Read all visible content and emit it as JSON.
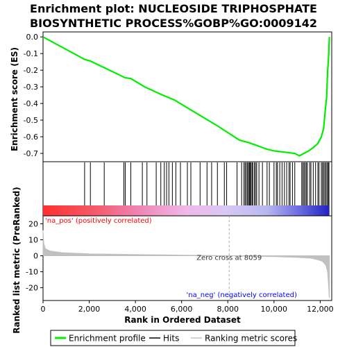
{
  "chart_data": {
    "type": "line",
    "title_line1": "Enrichment plot: NUCLEOSIDE TRIPHOSPHATE",
    "title_line2": "BIOSYNTHETIC PROCESS%GOBP%GO:0009142",
    "xlabel": "Rank in Ordered Dataset",
    "es_ylabel": "Enrichment score (ES)",
    "metric_ylabel_line1": "Ranked list metric (PreRanked)",
    "xlim": [
      0,
      12500
    ],
    "x_ticks": [
      0,
      2000,
      4000,
      6000,
      8000,
      10000,
      12000
    ],
    "x_tick_labels": [
      "0",
      "2,000",
      "4,000",
      "6,000",
      "8,000",
      "10,000",
      "12,000"
    ],
    "es_ylim": [
      -0.75,
      0.03
    ],
    "es_ticks": [
      0.0,
      -0.1,
      -0.2,
      -0.3,
      -0.4,
      -0.5,
      -0.6,
      -0.7
    ],
    "es_tick_labels": [
      "0.0",
      "-0.1",
      "-0.2",
      "-0.3",
      "-0.4",
      "-0.5",
      "-0.6",
      "-0.7"
    ],
    "metric_ylim": [
      -28,
      25
    ],
    "metric_ticks": [
      20,
      10,
      0,
      -10,
      -20
    ],
    "metric_tick_labels": [
      "20",
      "10",
      "0",
      "-10",
      "-20"
    ],
    "grid": false,
    "enrichment_profile": {
      "name": "Enrichment profile",
      "color": "#00ee00",
      "x": [
        0,
        1800,
        2050,
        2650,
        3550,
        3800,
        4400,
        5100,
        5700,
        6300,
        6900,
        7500,
        8000,
        8500,
        8900,
        9300,
        9700,
        10000,
        10300,
        10600,
        10900,
        11100,
        11300,
        11500,
        11700,
        11900,
        12050,
        12150,
        12220,
        12280,
        12320,
        12360,
        12380,
        12400
      ],
      "y": [
        0.0,
        -0.135,
        -0.145,
        -0.185,
        -0.245,
        -0.25,
        -0.3,
        -0.345,
        -0.38,
        -0.43,
        -0.48,
        -0.53,
        -0.575,
        -0.62,
        -0.635,
        -0.655,
        -0.675,
        -0.685,
        -0.69,
        -0.695,
        -0.7,
        -0.715,
        -0.7,
        -0.685,
        -0.665,
        -0.64,
        -0.6,
        -0.55,
        -0.44,
        -0.36,
        -0.21,
        -0.13,
        -0.06,
        0.0
      ]
    },
    "hits": {
      "name": "Hits",
      "color": "#000000",
      "positions": [
        1800,
        2050,
        2650,
        3500,
        3560,
        3800,
        4300,
        4500,
        4900,
        5100,
        5250,
        5350,
        5450,
        5600,
        5750,
        5950,
        6250,
        6400,
        6800,
        7100,
        7300,
        7550,
        7850,
        7950,
        8400,
        8600,
        8700,
        8750,
        8800,
        8850,
        8900,
        8930,
        8960,
        9000,
        9050,
        9080,
        9150,
        9200,
        9250,
        9350,
        9500,
        9700,
        9800,
        10000,
        10100,
        10150,
        10250,
        10350,
        10450,
        10550,
        10650,
        10700,
        10800,
        10900,
        11200,
        11250,
        11300,
        11350,
        11400,
        11450,
        11550,
        11600,
        11700,
        11800,
        11900,
        11950,
        12050,
        12100,
        12150,
        12200,
        12250,
        12300,
        12350,
        12380
      ]
    },
    "ranking_metric": {
      "name": "Ranking metric scores",
      "color": "#c0c0c0",
      "x": [
        0,
        30,
        100,
        300,
        800,
        2000,
        4000,
        6000,
        8059,
        10000,
        11000,
        11600,
        11900,
        12100,
        12250,
        12320,
        12360,
        12390,
        12400
      ],
      "y": [
        16,
        8,
        4.5,
        3,
        2,
        1.2,
        0.8,
        0.4,
        0,
        -0.5,
        -1,
        -1.5,
        -2.5,
        -3.5,
        -6,
        -10,
        -18,
        -26,
        -26
      ]
    },
    "zero_cross_label": "Zero cross at 8059",
    "zero_cross": 8059,
    "pos_label": "'na_pos' (positively correlated)",
    "neg_label": "'na_neg' (negatively correlated)",
    "pos_color": "#ff0000",
    "neg_color": "#0000ff",
    "legend": {
      "placement": "bottom",
      "entries": [
        {
          "label": "Enrichment profile",
          "color": "#00ee00"
        },
        {
          "label": "Hits",
          "color": "#000000"
        },
        {
          "label": "Ranking metric scores",
          "color": "#c0c0c0"
        }
      ]
    }
  }
}
